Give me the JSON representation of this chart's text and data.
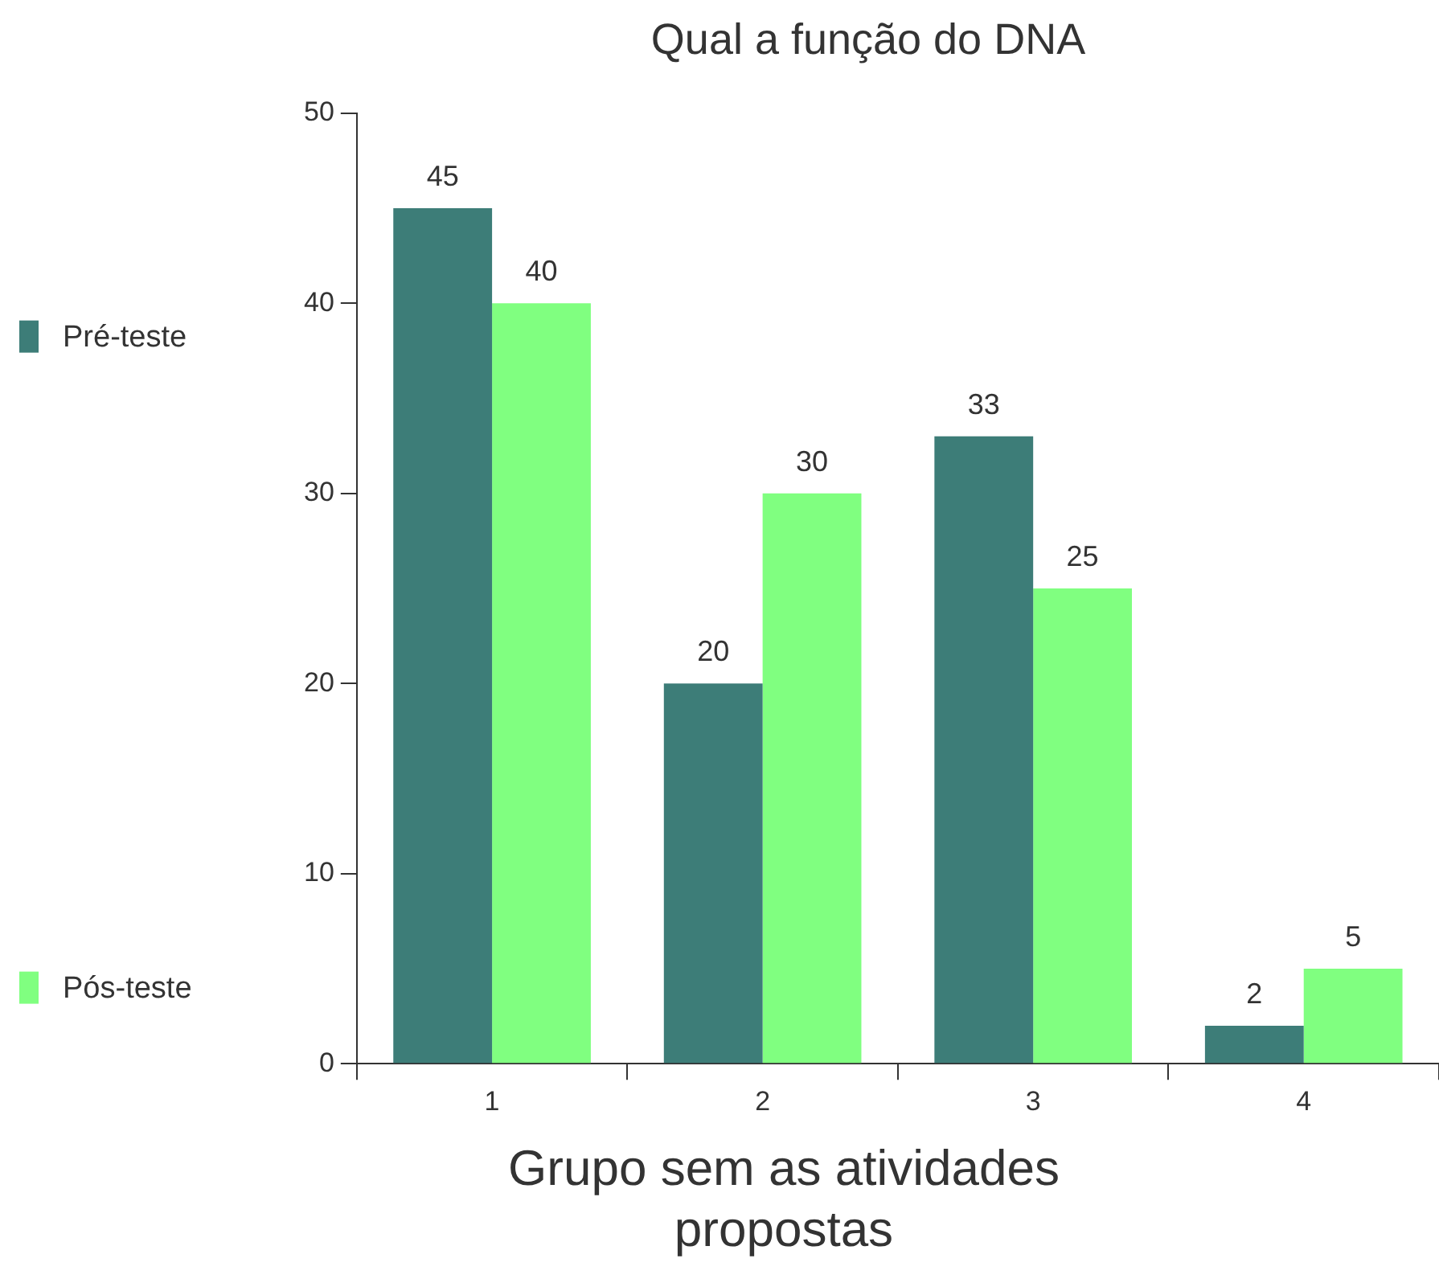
{
  "chart_data": {
    "type": "bar",
    "title": "Qual a função do DNA",
    "xlabel": "Grupo sem as atividades propostas",
    "categories": [
      "1",
      "2",
      "3",
      "4"
    ],
    "series": [
      {
        "name": "Pré-teste",
        "color": "#3d7d78",
        "values": [
          45,
          20,
          33,
          2
        ]
      },
      {
        "name": "Pós-teste",
        "color": "#80ff80",
        "values": [
          40,
          30,
          25,
          5
        ]
      }
    ],
    "ylim": [
      0,
      50
    ],
    "yticks": [
      0,
      10,
      20,
      30,
      40,
      50
    ],
    "grid": false,
    "legend": "left",
    "data_labels": true
  }
}
